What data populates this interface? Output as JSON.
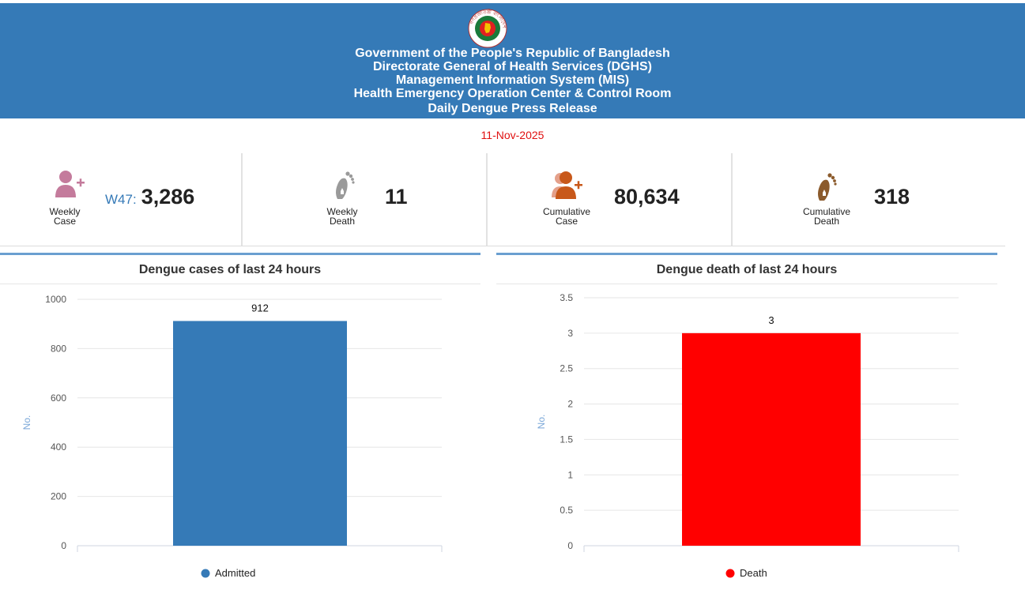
{
  "header": {
    "seal_text": "গণপ্রজাতন্ত্রী বাংলাদেশ সরকার",
    "lines": [
      "Government of the People's Republic of Bangladesh",
      "Directorate General of Health Services (DGHS)",
      "Management Information System (MIS)",
      "Health Emergency Operation Center & Control Room",
      "Daily Dengue Press Release"
    ]
  },
  "date": "11-Nov-2025",
  "stats": {
    "weekly_case": {
      "label_1": "Weekly",
      "label_2": "Case",
      "week": "W47:",
      "value": "3,286"
    },
    "weekly_death": {
      "label_1": "Weekly",
      "label_2": "Death",
      "value": "11"
    },
    "cumulative_case": {
      "label_1": "Cumulative",
      "label_2": "Case",
      "value": "80,634"
    },
    "cumulative_death": {
      "label_1": "Cumulative",
      "label_2": "Death",
      "value": "318"
    }
  },
  "colors": {
    "header_bg": "#357ab7",
    "admitted": "#357ab7",
    "death": "#ff0000",
    "date": "#e01010"
  },
  "chart_data": [
    {
      "type": "bar",
      "title": "Dengue cases of last 24 hours",
      "ylabel": "No.",
      "xlabel": "",
      "categories": [
        "Admitted"
      ],
      "values": [
        912
      ],
      "data_labels": [
        "912"
      ],
      "ylim": [
        0,
        1000
      ],
      "yticks": [
        0,
        200,
        400,
        600,
        800,
        1000
      ],
      "ytick_labels": [
        "0",
        "200",
        "400",
        "600",
        "800",
        "1000"
      ],
      "legend": "bottom-center",
      "legend_entries": [
        "Admitted"
      ],
      "grid": true
    },
    {
      "type": "bar",
      "title": "Dengue death of last 24 hours",
      "ylabel": "No.",
      "xlabel": "",
      "categories": [
        "Death"
      ],
      "values": [
        3
      ],
      "data_labels": [
        "3"
      ],
      "ylim": [
        0,
        3.5
      ],
      "yticks": [
        0,
        0.5,
        1,
        1.5,
        2,
        2.5,
        3,
        3.5
      ],
      "ytick_labels": [
        "0",
        "0.5",
        "1",
        "1.5",
        "2",
        "2.5",
        "3",
        "3.5"
      ],
      "legend": "bottom-center",
      "legend_entries": [
        "Death"
      ],
      "grid": true
    }
  ]
}
